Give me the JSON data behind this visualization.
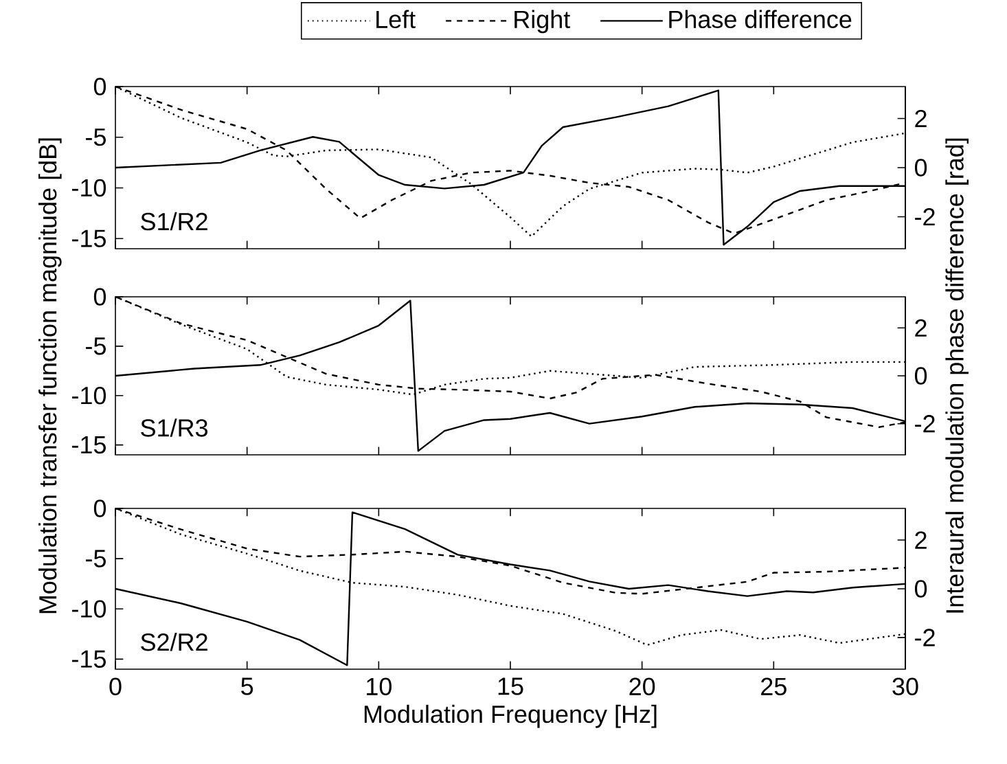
{
  "chart_data": [
    {
      "type": "line",
      "xlim": [
        0,
        30
      ],
      "xticks": [
        0,
        5,
        10,
        15,
        20,
        25,
        30
      ],
      "ylim": [
        -16,
        0
      ],
      "yticks": [
        -15,
        -10,
        -5,
        0
      ],
      "y2lim": [
        -3.3,
        3.3
      ],
      "y2ticks": [
        -2,
        0,
        2
      ],
      "tick_labels": "y",
      "legend": "top",
      "annotations": [
        "S1/R2"
      ],
      "series": [
        {
          "name": "Left",
          "color": "#000000",
          "line_style": "dotted",
          "x": [
            0,
            2.5,
            5,
            6,
            6.5,
            8,
            10,
            12,
            13.5,
            15,
            15.8,
            17,
            18,
            20,
            22,
            23,
            24,
            25,
            27,
            28,
            30
          ],
          "values": [
            0,
            -3.1,
            -5.5,
            -6.8,
            -6.9,
            -6.3,
            -6.2,
            -7,
            -9.6,
            -12.9,
            -14.8,
            -11.8,
            -10.1,
            -8.5,
            -8.1,
            -8.2,
            -8.5,
            -7.9,
            -6.3,
            -5.5,
            -4.6
          ]
        },
        {
          "name": "Right",
          "color": "#000000",
          "line_style": "dashed",
          "x": [
            0,
            2.5,
            5,
            6.5,
            8,
            9.3,
            10.5,
            12,
            13.5,
            15,
            16.5,
            18,
            19.5,
            21,
            22.5,
            23.5,
            25,
            27,
            28.5,
            30
          ],
          "values": [
            0,
            -2.3,
            -4.2,
            -6.3,
            -10.1,
            -13,
            -11.2,
            -9.3,
            -8.5,
            -8.3,
            -8.8,
            -9.5,
            -9.9,
            -11.2,
            -13.4,
            -14.5,
            -13.1,
            -11.2,
            -10.4,
            -9.5
          ]
        },
        {
          "name": "Phase difference",
          "color": "#000000",
          "line_style": "solid",
          "axis": "y2",
          "x": [
            0,
            4,
            5.5,
            7.5,
            8.5,
            10,
            11,
            12.5,
            14,
            15.5,
            16.2,
            17,
            19,
            21,
            22.9,
            23.1,
            24,
            25,
            26,
            27.5,
            30
          ],
          "values": [
            0,
            0.2,
            0.7,
            1.25,
            1.05,
            -0.3,
            -0.7,
            -0.85,
            -0.7,
            -0.2,
            0.9,
            1.65,
            2.05,
            2.5,
            3.14,
            -3.14,
            -2.4,
            -1.4,
            -0.95,
            -0.75,
            -0.75
          ]
        }
      ]
    },
    {
      "type": "line",
      "xlim": [
        0,
        30
      ],
      "xticks": [
        0,
        5,
        10,
        15,
        20,
        25,
        30
      ],
      "ylim": [
        -16,
        0
      ],
      "yticks": [
        -15,
        -10,
        -5,
        0
      ],
      "y2lim": [
        -3.3,
        3.3
      ],
      "y2ticks": [
        -2,
        0,
        2
      ],
      "tick_labels": "y",
      "ylabel": "Modulation transfer function magnitude [dB]",
      "y2label": "Interaural modulation phase difference [rad]",
      "annotations": [
        "S1/R3"
      ],
      "series": [
        {
          "color": "#000000",
          "line_style": "dotted",
          "x": [
            0,
            2.5,
            5,
            6.5,
            8,
            10,
            11.3,
            12.5,
            14,
            15,
            16.5,
            18,
            20,
            22,
            25,
            28,
            30
          ],
          "values": [
            0,
            -2.8,
            -5.3,
            -8.1,
            -8.9,
            -9.4,
            -9.9,
            -8.9,
            -8.3,
            -8.2,
            -7.5,
            -7.8,
            -8.2,
            -7.1,
            -6.9,
            -6.6,
            -6.6
          ]
        },
        {
          "color": "#000000",
          "line_style": "dashed",
          "x": [
            0,
            2.5,
            5,
            6.5,
            8,
            10,
            11.5,
            13,
            15,
            16.5,
            17.5,
            18.5,
            20.5,
            22.5,
            24.5,
            26,
            27,
            29,
            30
          ],
          "values": [
            0,
            -2.7,
            -4.4,
            -6.1,
            -7.8,
            -8.9,
            -9.3,
            -9.4,
            -9.6,
            -10.3,
            -9.7,
            -8.3,
            -7.9,
            -8.8,
            -9.6,
            -10.6,
            -12.2,
            -13.2,
            -12.7
          ]
        },
        {
          "color": "#000000",
          "line_style": "solid",
          "axis": "y2",
          "x": [
            0,
            3,
            5.5,
            7,
            8.5,
            10,
            11.2,
            11.5,
            12.5,
            14,
            15,
            16.5,
            18,
            20,
            22,
            24,
            26,
            28,
            30
          ],
          "values": [
            0,
            0.3,
            0.45,
            0.85,
            1.4,
            2.1,
            3.14,
            -3.14,
            -2.3,
            -1.85,
            -1.8,
            -1.55,
            -2,
            -1.7,
            -1.3,
            -1.15,
            -1.2,
            -1.35,
            -1.9
          ]
        }
      ]
    },
    {
      "type": "line",
      "xlim": [
        0,
        30
      ],
      "xticks": [
        0,
        5,
        10,
        15,
        20,
        25,
        30
      ],
      "ylim": [
        -16,
        0
      ],
      "yticks": [
        -15,
        -10,
        -5,
        0
      ],
      "y2lim": [
        -3.3,
        3.3
      ],
      "y2ticks": [
        -2,
        0,
        2
      ],
      "xlabel": "Modulation Frequency [Hz]",
      "annotations": [
        "S2/R2"
      ],
      "series": [
        {
          "color": "#000000",
          "line_style": "dotted",
          "x": [
            0,
            2.5,
            5,
            7,
            9,
            11,
            13,
            15,
            17,
            19,
            20.2,
            21.5,
            23,
            24.5,
            26,
            27.5,
            30
          ],
          "values": [
            0,
            -2.6,
            -4.5,
            -6.2,
            -7.4,
            -7.8,
            -8.6,
            -9.7,
            -10.5,
            -12.2,
            -13.6,
            -12.6,
            -12.1,
            -13,
            -12.6,
            -13.4,
            -12.5
          ]
        },
        {
          "color": "#000000",
          "line_style": "dashed",
          "x": [
            0,
            2.5,
            5,
            7,
            9,
            11,
            13,
            15,
            17,
            19,
            20,
            22,
            24,
            25,
            27,
            30
          ],
          "values": [
            0,
            -2.1,
            -4,
            -4.8,
            -4.6,
            -4.3,
            -4.8,
            -5.7,
            -7.4,
            -8.4,
            -8.5,
            -7.9,
            -7.3,
            -6.4,
            -6.3,
            -5.9
          ]
        },
        {
          "color": "#000000",
          "line_style": "solid",
          "axis": "y2",
          "x": [
            0,
            2.5,
            5,
            7,
            8.8,
            9,
            11,
            13,
            15,
            16.5,
            18,
            19.5,
            21,
            22.5,
            24,
            25.5,
            26.5,
            28,
            30
          ],
          "values": [
            0,
            -0.6,
            -1.35,
            -2.1,
            -3.14,
            3.14,
            2.45,
            1.4,
            1,
            0.75,
            0.3,
            0,
            0.15,
            -0.1,
            -0.3,
            -0.1,
            -0.15,
            0.05,
            0.2
          ]
        }
      ]
    }
  ]
}
